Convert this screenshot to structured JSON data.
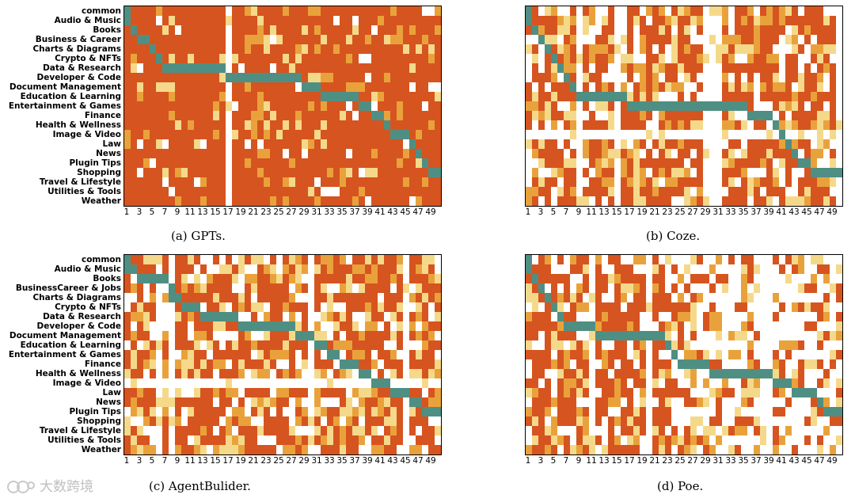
{
  "chart_data": [
    {
      "type": "heatmap",
      "caption": "(a)  GPTs.",
      "rows": [
        "common",
        "Audio & Music",
        "Books",
        "Business & Career",
        "Charts & Diagrams",
        "Crypto & NFTs",
        "Data & Research",
        "Developer & Code",
        "Document Management",
        "Education & Learning",
        "Entertainment & Games",
        "Finance",
        "Health & Wellness",
        "Image & Video",
        "Law",
        "News",
        "Plugin Tips",
        "Shopping",
        "Travel & Lifestyle",
        "Utilities & Tools",
        "Weather"
      ],
      "columns": 50,
      "xticks": [
        "1",
        "3",
        "5",
        "7",
        "9",
        "11",
        "13",
        "15",
        "17",
        "19",
        "21",
        "23",
        "25",
        "27",
        "29",
        "31",
        "33",
        "35",
        "37",
        "39",
        "41",
        "43",
        "45",
        "47",
        "49"
      ],
      "style": "dense-high",
      "diagonal": [
        [
          1,
          1
        ],
        [
          2,
          2
        ],
        [
          3,
          4
        ],
        [
          5,
          5
        ],
        [
          6,
          6
        ],
        [
          7,
          16
        ],
        [
          17,
          28
        ],
        [
          29,
          31
        ],
        [
          32,
          37
        ],
        [
          38,
          39
        ],
        [
          40,
          41
        ],
        [
          42,
          42
        ],
        [
          43,
          45
        ],
        [
          46,
          46
        ],
        [
          47,
          47
        ],
        [
          48,
          48
        ],
        [
          49,
          50
        ]
      ],
      "white_columns": [
        17
      ],
      "white_rows": [],
      "colors": {
        "high": "#d6541f",
        "mid": "#e9a23b",
        "low": "#f5d98a",
        "diag": "#4f8f83",
        "zero": "#ffffff"
      }
    },
    {
      "type": "heatmap",
      "caption": "(b)  Coze.",
      "rows": [
        "common",
        "Audio & Music",
        "Books",
        "Business & Career",
        "Charts & Diagrams",
        "Crypto & NFTs",
        "Data & Research",
        "Developer & Code",
        "Document Management",
        "Education & Learning",
        "Entertainment & Games",
        "Finance",
        "Health & Wellness",
        "Image & Video",
        "Law",
        "News",
        "Plugin Tips",
        "Shopping",
        "Travel & Lifestyle",
        "Utilities & Tools",
        "Weather"
      ],
      "columns": 50,
      "xticks": [
        "1",
        "3",
        "5",
        "7",
        "9",
        "11",
        "13",
        "15",
        "17",
        "19",
        "21",
        "23",
        "25",
        "27",
        "29",
        "31",
        "33",
        "35",
        "37",
        "39",
        "41",
        "43",
        "45",
        "47",
        "49"
      ],
      "style": "medium",
      "diagonal": [
        [
          1,
          1
        ],
        [
          2,
          2
        ],
        [
          3,
          3
        ],
        [
          4,
          4
        ],
        [
          5,
          5
        ],
        [
          6,
          6
        ],
        [
          7,
          7
        ],
        [
          8,
          8
        ],
        [
          9,
          16
        ],
        [
          17,
          35
        ],
        [
          36,
          39
        ],
        [
          40,
          40
        ],
        [
          41,
          41
        ],
        [
          42,
          42
        ],
        [
          43,
          43
        ],
        [
          44,
          45
        ],
        [
          46,
          50
        ]
      ],
      "white_columns": [
        9,
        15,
        29,
        30,
        31,
        50
      ],
      "white_rows": [
        14
      ],
      "colors": {
        "high": "#d6541f",
        "mid": "#e9a23b",
        "low": "#f5d98a",
        "diag": "#4f8f83",
        "zero": "#ffffff"
      }
    },
    {
      "type": "heatmap",
      "caption": "(c)  AgentBulider.",
      "rows": [
        "common",
        "Audio & Music",
        "Books",
        "BusinessCareer & Jobs",
        "Charts & Diagrams",
        "Crypto & NFTs",
        "Data & Research",
        "Developer & Code",
        "Document Management",
        "Education & Learning",
        "Entertainment & Games",
        "Finance",
        "Health & Wellness",
        "Image & Video",
        "Law",
        "News",
        "Plugin Tips",
        "Shopping",
        "Travel & Lifestyle",
        "Utilities & Tools",
        "Weather"
      ],
      "columns": 50,
      "xticks": [
        "1",
        "3",
        "5",
        "7",
        "9",
        "11",
        "13",
        "15",
        "17",
        "19",
        "21",
        "23",
        "25",
        "27",
        "29",
        "31",
        "33",
        "35",
        "37",
        "39",
        "41",
        "43",
        "45",
        "47",
        "49"
      ],
      "style": "medium",
      "diagonal": [
        [
          1,
          2
        ],
        [
          3,
          7
        ],
        [
          8,
          8
        ],
        [
          9,
          8
        ],
        [
          10,
          12
        ],
        [
          13,
          18
        ],
        [
          19,
          27
        ],
        [
          28,
          30
        ],
        [
          31,
          32
        ],
        [
          33,
          34
        ],
        [
          35,
          37
        ],
        [
          38,
          39
        ],
        [
          40,
          42
        ],
        [
          43,
          45
        ],
        [
          46,
          47
        ],
        [
          48,
          50
        ]
      ],
      "white_columns": [
        6,
        8,
        30,
        45
      ],
      "white_rows": [
        14
      ],
      "colors": {
        "high": "#d6541f",
        "mid": "#e9a23b",
        "low": "#f5d98a",
        "diag": "#4f8f83",
        "zero": "#ffffff"
      }
    },
    {
      "type": "heatmap",
      "caption": "(d)  Poe.",
      "rows": [
        "common",
        "Audio & Music",
        "Books",
        "Business & Career",
        "Charts & Diagrams",
        "Crypto & NFTs",
        "Data & Research",
        "Developer & Code",
        "Document Management",
        "Education & Learning",
        "Entertainment & Games",
        "Finance",
        "Health & Wellness",
        "Image & Video",
        "Law",
        "News",
        "Plugin Tips",
        "Shopping",
        "Travel & Lifestyle",
        "Utilities & Tools",
        "Weather"
      ],
      "columns": 50,
      "xticks": [
        "1",
        "3",
        "5",
        "7",
        "9",
        "11",
        "13",
        "15",
        "17",
        "19",
        "21",
        "23",
        "25",
        "27",
        "29",
        "31",
        "33",
        "35",
        "37",
        "39",
        "41",
        "43",
        "45",
        "47",
        "49"
      ],
      "style": "sparse",
      "diagonal": [
        [
          1,
          1
        ],
        [
          2,
          2
        ],
        [
          3,
          3
        ],
        [
          4,
          4
        ],
        [
          5,
          5
        ],
        [
          6,
          6
        ],
        [
          7,
          11
        ],
        [
          12,
          22
        ],
        [
          23,
          23
        ],
        [
          24,
          24
        ],
        [
          25,
          29
        ],
        [
          30,
          39
        ],
        [
          40,
          42
        ],
        [
          43,
          46
        ],
        [
          47,
          47
        ],
        [
          48,
          50
        ]
      ],
      "white_columns": [
        11,
        20,
        38,
        39
      ],
      "white_rows": [],
      "colors": {
        "high": "#d6541f",
        "mid": "#e9a23b",
        "low": "#f5d98a",
        "diag": "#4f8f83",
        "zero": "#ffffff"
      }
    }
  ],
  "watermark": {
    "text": "大数跨境"
  }
}
